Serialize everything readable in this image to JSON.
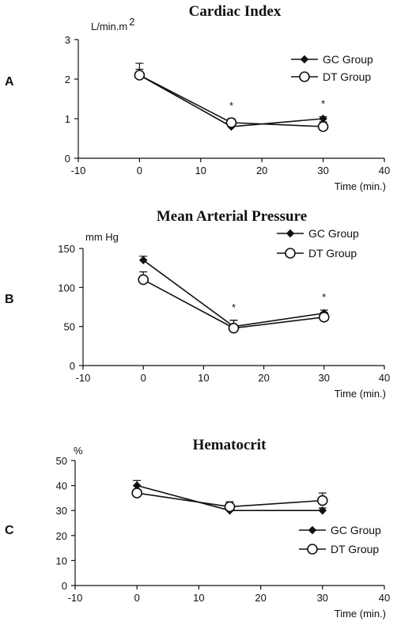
{
  "chart_data": [
    {
      "type": "line",
      "panel_label": "A",
      "title": "Cardiac Index",
      "ylabel": "L/min.m",
      "ylabel_sup": "2",
      "xlabel": "Time (min.)",
      "xlim": [
        -10,
        40
      ],
      "ylim": [
        0,
        3
      ],
      "xticks": [
        -10,
        0,
        10,
        20,
        30,
        40
      ],
      "yticks": [
        0,
        1,
        2,
        3
      ],
      "grid": false,
      "legend_position": "top-right",
      "series": [
        {
          "name": "GC Group",
          "marker": "filled-diamond",
          "x": [
            0,
            15,
            30
          ],
          "y": [
            2.1,
            0.8,
            1.0
          ],
          "err": [
            0.15,
            0.05,
            0.05
          ]
        },
        {
          "name": "DT Group",
          "marker": "open-circle",
          "x": [
            0,
            15,
            30
          ],
          "y": [
            2.1,
            0.9,
            0.8
          ],
          "err": [
            0.3,
            0.1,
            0.12
          ]
        }
      ],
      "annotations": [
        {
          "text": "*",
          "x": 15
        },
        {
          "text": "*",
          "x": 30
        }
      ]
    },
    {
      "type": "line",
      "panel_label": "B",
      "title": "Mean Arterial Pressure",
      "ylabel": "mm Hg",
      "ylabel_sup": "",
      "xlabel": "Time (min.)",
      "xlim": [
        -10,
        40
      ],
      "ylim": [
        0,
        150
      ],
      "xticks": [
        -10,
        0,
        10,
        20,
        30,
        40
      ],
      "yticks": [
        0,
        50,
        100,
        150
      ],
      "grid": false,
      "legend_position": "top-right",
      "series": [
        {
          "name": "GC Group",
          "marker": "filled-diamond",
          "x": [
            0,
            15,
            30
          ],
          "y": [
            135,
            50,
            67
          ],
          "err": [
            5,
            8,
            4
          ]
        },
        {
          "name": "DT Group",
          "marker": "open-circle",
          "x": [
            0,
            15,
            30
          ],
          "y": [
            110,
            48,
            62
          ],
          "err": [
            10,
            10,
            6
          ]
        }
      ],
      "annotations": [
        {
          "text": "*",
          "x": 15
        },
        {
          "text": "*",
          "x": 30
        }
      ]
    },
    {
      "type": "line",
      "panel_label": "C",
      "title": "Hematocrit",
      "ylabel": "%",
      "ylabel_sup": "",
      "xlabel": "Time (min.)",
      "xlim": [
        -10,
        40
      ],
      "ylim": [
        0,
        50
      ],
      "xticks": [
        -10,
        0,
        10,
        20,
        30,
        40
      ],
      "yticks": [
        0,
        10,
        20,
        30,
        40,
        50
      ],
      "grid": false,
      "legend_position": "bottom-right",
      "series": [
        {
          "name": "GC Group",
          "marker": "filled-diamond",
          "x": [
            0,
            15,
            30
          ],
          "y": [
            40,
            30,
            30
          ],
          "err": [
            2,
            1,
            1
          ]
        },
        {
          "name": "DT Group",
          "marker": "open-circle",
          "x": [
            0,
            15,
            30
          ],
          "y": [
            37,
            31.5,
            34
          ],
          "err": [
            3,
            2,
            3
          ]
        }
      ],
      "annotations": []
    }
  ]
}
